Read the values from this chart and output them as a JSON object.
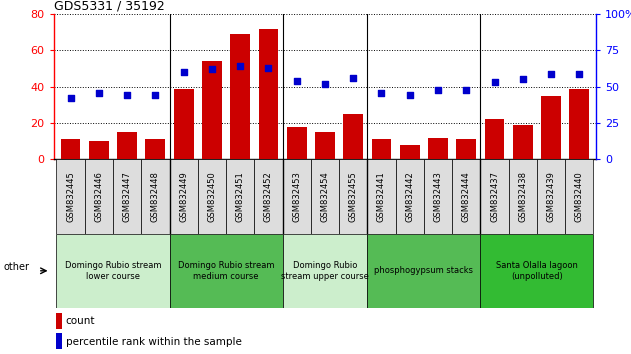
{
  "title": "GDS5331 / 35192",
  "samples": [
    "GSM832445",
    "GSM832446",
    "GSM832447",
    "GSM832448",
    "GSM832449",
    "GSM832450",
    "GSM832451",
    "GSM832452",
    "GSM832453",
    "GSM832454",
    "GSM832455",
    "GSM832441",
    "GSM832442",
    "GSM832443",
    "GSM832444",
    "GSM832437",
    "GSM832438",
    "GSM832439",
    "GSM832440"
  ],
  "counts": [
    11,
    10,
    15,
    11,
    39,
    54,
    69,
    72,
    18,
    15,
    25,
    11,
    8,
    12,
    11,
    22,
    19,
    35,
    39
  ],
  "percentile": [
    42,
    46,
    44,
    44,
    60,
    62,
    64,
    63,
    54,
    52,
    56,
    46,
    44,
    48,
    48,
    53,
    55,
    59,
    59
  ],
  "bar_color": "#cc0000",
  "dot_color": "#0000cc",
  "ylim_left": [
    0,
    80
  ],
  "ylim_right": [
    0,
    100
  ],
  "yticks_left": [
    0,
    20,
    40,
    60,
    80
  ],
  "yticks_right": [
    0,
    25,
    50,
    75,
    100
  ],
  "group_colors": [
    "#cceecc",
    "#55bb55",
    "#cceecc",
    "#55bb55",
    "#33bb33"
  ],
  "groups": [
    {
      "label": "Domingo Rubio stream\nlower course",
      "start": 0,
      "end": 4
    },
    {
      "label": "Domingo Rubio stream\nmedium course",
      "start": 4,
      "end": 8
    },
    {
      "label": "Domingo Rubio\nstream upper course",
      "start": 8,
      "end": 11
    },
    {
      "label": "phosphogypsum stacks",
      "start": 11,
      "end": 15
    },
    {
      "label": "Santa Olalla lagoon\n(unpolluted)",
      "start": 15,
      "end": 19
    }
  ],
  "other_label": "other",
  "legend_count": "count",
  "legend_pct": "percentile rank within the sample",
  "xtick_bg": "#dddddd",
  "title_fontsize": 9,
  "tick_fontsize": 6,
  "group_fontsize": 6
}
